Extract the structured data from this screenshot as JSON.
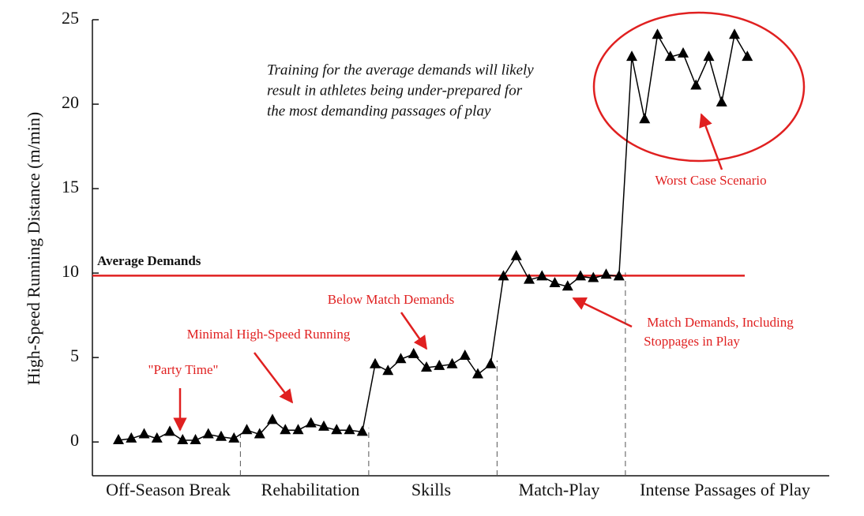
{
  "chart_data": {
    "type": "line",
    "ylabel": "High-Speed Running Distance (m/min)",
    "ylim": [
      -2,
      25
    ],
    "yticks": [
      0,
      5,
      10,
      15,
      20,
      25
    ],
    "phases": [
      "Off-Season Break",
      "Rehabilitation",
      "Skills",
      "Match-Play",
      "Intense Passages of Play"
    ],
    "series": [
      {
        "color": "#000000",
        "marker": "triangle",
        "values": [
          0.1,
          0.2,
          0.45,
          0.2,
          0.6,
          0.1,
          0.1,
          0.45,
          0.3,
          0.2,
          0.7,
          0.45,
          1.3,
          0.7,
          0.7,
          1.1,
          0.9,
          0.7,
          0.7,
          0.6,
          4.6,
          4.2,
          4.9,
          5.2,
          4.4,
          4.5,
          4.6,
          5.1,
          4.0,
          4.6,
          9.8,
          11.0,
          9.6,
          9.8,
          9.4,
          9.2,
          9.8,
          9.7,
          9.9,
          9.8,
          22.8,
          19.1,
          24.1,
          22.8,
          23.0,
          21.1,
          22.8,
          20.1,
          24.1,
          22.8
        ]
      }
    ],
    "reference_line": {
      "label": "Average Demands",
      "value": 9.85,
      "color": "#e02020"
    },
    "note": [
      "Training for the average demands will likely",
      "result in athletes being under-prepared for",
      "the most demanding passages of play"
    ],
    "annotations": [
      {
        "lines": [
          "\"Party Time\""
        ]
      },
      {
        "lines": [
          "Minimal High-Speed Running"
        ]
      },
      {
        "lines": [
          "Below Match Demands"
        ]
      },
      {
        "lines": [
          "Match Demands, Including",
          "Stoppages in Play"
        ]
      },
      {
        "lines": [
          "Worst Case Scenario"
        ]
      }
    ],
    "annotation_color": "#e02020"
  }
}
